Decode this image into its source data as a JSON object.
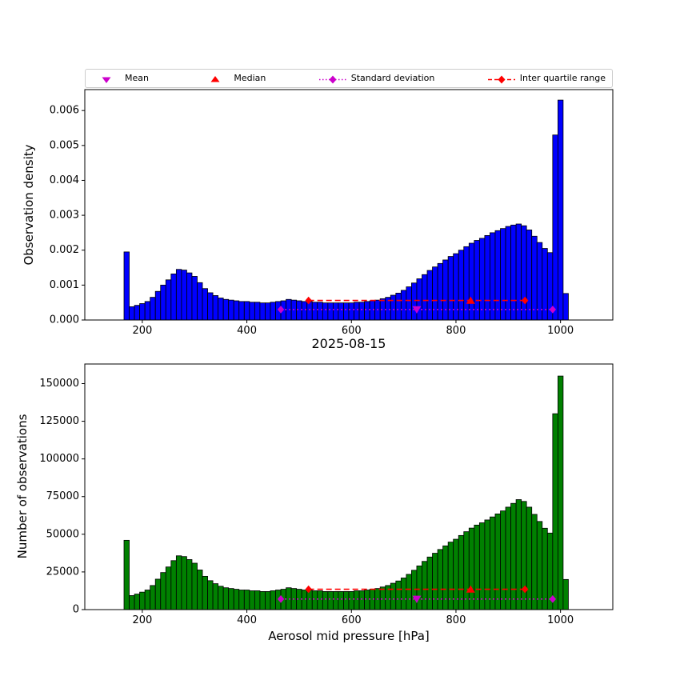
{
  "legend": {
    "items": [
      {
        "label": "Mean",
        "marker": "triangle-down",
        "linestyle": "none",
        "color": "#cc00cc",
        "icon": "mean-marker-icon"
      },
      {
        "label": "Median",
        "marker": "triangle-up",
        "linestyle": "none",
        "color": "#ff0000",
        "icon": "median-marker-icon"
      },
      {
        "label": "Standard deviation",
        "marker": "diamond",
        "linestyle": "dotted",
        "color": "#cc00cc",
        "icon": "std-deviation-marker-icon"
      },
      {
        "label": "Inter quartile range",
        "marker": "diamond",
        "linestyle": "dashed",
        "color": "#ff0000",
        "icon": "iqr-marker-icon"
      }
    ]
  },
  "chart_data": [
    {
      "type": "bar",
      "name": "observation-density-histogram",
      "ylabel": "Observation density",
      "bar_color": "#0000ff",
      "bar_edge_color": "#000000",
      "bin_start": 165,
      "bin_width": 10,
      "xlim": [
        90,
        1100
      ],
      "ylim": [
        0,
        0.0066
      ],
      "xticks": [
        200,
        400,
        600,
        800,
        1000
      ],
      "ytick_values": [
        0,
        0.001,
        0.002,
        0.003,
        0.004,
        0.005,
        0.006
      ],
      "ytick_labels": [
        "0.000",
        "0.001",
        "0.002",
        "0.003",
        "0.004",
        "0.005",
        "0.006"
      ],
      "values": [
        0.00195,
        0.00038,
        0.00042,
        0.00047,
        0.00053,
        0.00065,
        0.00082,
        0.001,
        0.00115,
        0.00132,
        0.00145,
        0.00143,
        0.00135,
        0.00125,
        0.00107,
        0.0009,
        0.00078,
        0.0007,
        0.00063,
        0.00059,
        0.00057,
        0.00055,
        0.00053,
        0.00053,
        0.00051,
        0.00051,
        0.00049,
        0.00049,
        0.00051,
        0.00053,
        0.00055,
        0.00059,
        0.00057,
        0.00055,
        0.00053,
        0.00053,
        0.00051,
        0.00051,
        0.00049,
        0.00049,
        0.00049,
        0.00049,
        0.00049,
        0.00049,
        0.00051,
        0.00051,
        0.00053,
        0.00055,
        0.00057,
        0.00061,
        0.00065,
        0.00071,
        0.00077,
        0.00085,
        0.00095,
        0.00106,
        0.00118,
        0.0013,
        0.00142,
        0.00152,
        0.00162,
        0.00172,
        0.00182,
        0.0019,
        0.002,
        0.0021,
        0.0022,
        0.00228,
        0.00234,
        0.00242,
        0.0025,
        0.00256,
        0.00262,
        0.00268,
        0.00272,
        0.00275,
        0.0027,
        0.00258,
        0.0024,
        0.00222,
        0.00205,
        0.00193,
        0.0053,
        0.0063,
        0.00076
      ],
      "markers": {
        "mean": {
          "x": 725,
          "y": 0.0003,
          "color": "#cc00cc"
        },
        "median": {
          "x": 828,
          "y": 0.00056,
          "color": "#ff0000"
        },
        "std_dev_range": {
          "x_start": 465,
          "x_end": 985,
          "y": 0.0003,
          "color": "#cc00cc",
          "linestyle": "dotted"
        },
        "interquartile_range": {
          "x_start": 518,
          "x_end": 932,
          "y": 0.00056,
          "color": "#ff0000",
          "linestyle": "dashed"
        }
      }
    },
    {
      "type": "bar",
      "name": "number-of-observations-histogram",
      "title": "2025-08-15",
      "xlabel": "Aerosol mid pressure [hPa]",
      "ylabel": "Number of observations",
      "bar_color": "#008000",
      "bar_edge_color": "#000000",
      "bin_start": 165,
      "bin_width": 10,
      "xlim": [
        90,
        1100
      ],
      "ylim": [
        0,
        163000
      ],
      "xticks": [
        200,
        400,
        600,
        800,
        1000
      ],
      "ytick_values": [
        0,
        25000,
        50000,
        75000,
        100000,
        125000,
        150000
      ],
      "ytick_labels": [
        "0",
        "25000",
        "50000",
        "75000",
        "100000",
        "125000",
        "150000"
      ],
      "values": [
        46000,
        9300,
        10300,
        11600,
        13000,
        16000,
        20200,
        24600,
        28300,
        32500,
        35700,
        35200,
        33200,
        30800,
        26300,
        22100,
        19200,
        17200,
        15500,
        14500,
        14000,
        13500,
        13000,
        13000,
        12500,
        12500,
        12000,
        12000,
        12500,
        13000,
        13500,
        14500,
        14000,
        13500,
        13000,
        13000,
        12500,
        12500,
        12000,
        12000,
        12000,
        12000,
        12000,
        12000,
        12500,
        12500,
        13000,
        13500,
        14000,
        15000,
        16000,
        17500,
        19000,
        21000,
        23400,
        26100,
        29000,
        32000,
        34900,
        37400,
        39900,
        42300,
        44800,
        46700,
        49200,
        51700,
        54100,
        56100,
        57600,
        59500,
        61500,
        63500,
        65500,
        68000,
        70500,
        73000,
        71800,
        68000,
        63200,
        58500,
        54000,
        50800,
        130000,
        155000,
        20000
      ],
      "markers": {
        "mean": {
          "x": 725,
          "y": 7000,
          "color": "#cc00cc"
        },
        "median": {
          "x": 828,
          "y": 13500,
          "color": "#ff0000"
        },
        "std_dev_range": {
          "x_start": 465,
          "x_end": 985,
          "y": 7000,
          "color": "#cc00cc",
          "linestyle": "dotted"
        },
        "interquartile_range": {
          "x_start": 518,
          "x_end": 932,
          "y": 13500,
          "color": "#ff0000",
          "linestyle": "dashed"
        }
      }
    }
  ]
}
